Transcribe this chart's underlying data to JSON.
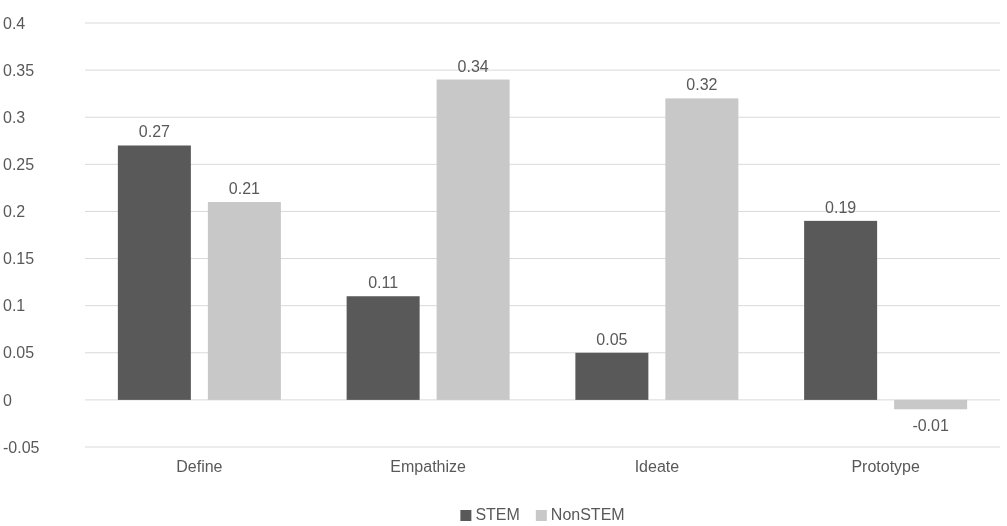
{
  "chart_data": {
    "type": "bar",
    "categories": [
      "Define",
      "Empathize",
      "Ideate",
      "Prototype"
    ],
    "series": [
      {
        "name": "STEM",
        "color": "#595959",
        "values": [
          0.27,
          0.11,
          0.05,
          0.19
        ]
      },
      {
        "name": "NonSTEM",
        "color": "#c8c8c8",
        "values": [
          0.21,
          0.34,
          0.32,
          -0.01
        ]
      }
    ],
    "ylim": [
      -0.05,
      0.4
    ],
    "yticks": [
      -0.05,
      0,
      0.05,
      0.1,
      0.15,
      0.2,
      0.25,
      0.3,
      0.35,
      0.4
    ],
    "grid": "y",
    "legend": "bottom",
    "data_labels": true
  }
}
